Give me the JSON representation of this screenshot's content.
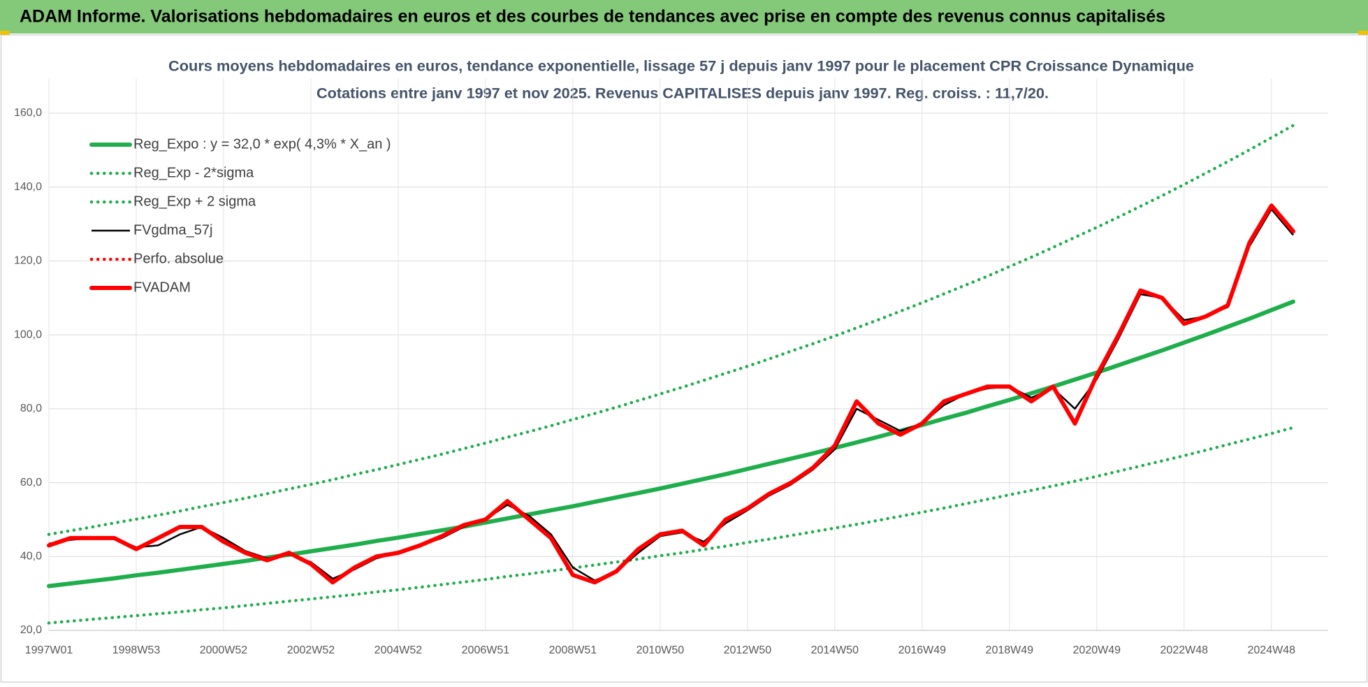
{
  "header": {
    "title": "ADAM Informe. Valorisations hebdomadaires en euros et des courbes de tendances avec prise en compte des revenus connus capitalisés"
  },
  "chart_data": {
    "type": "line",
    "title": "Cours moyens hebdomadaires en euros, tendance exponentielle, lissage 57 j depuis janv 1997 pour le placement CPR Croissance Dynamique",
    "subtitle": "Cotations entre janv 1997 et nov 2025. Revenus CAPITALISES depuis janv 1997. Reg. croiss. : 11,7/20.",
    "categories": [
      "1997W01",
      null,
      null,
      null,
      "1998W53",
      null,
      null,
      null,
      "2000W52",
      null,
      null,
      null,
      "2002W52",
      null,
      null,
      null,
      "2004W52",
      null,
      null,
      null,
      "2006W51",
      null,
      null,
      null,
      "2008W51",
      null,
      null,
      null,
      "2010W50",
      null,
      null,
      null,
      "2012W50",
      null,
      null,
      null,
      "2014W50",
      null,
      null,
      null,
      "2016W49",
      null,
      null,
      null,
      "2018W49",
      null,
      null,
      null,
      "2020W49",
      null,
      null,
      null,
      "2022W48",
      null,
      null,
      null,
      "2024W48",
      null
    ],
    "ylim": [
      20,
      160
    ],
    "yticks": [
      {
        "value": 20,
        "label": "20,0"
      },
      {
        "value": 40,
        "label": "40,0"
      },
      {
        "value": 60,
        "label": "60,0"
      },
      {
        "value": 80,
        "label": "80,0"
      },
      {
        "value": 100,
        "label": "100,0"
      },
      {
        "value": 120,
        "label": "120,0"
      },
      {
        "value": 140,
        "label": "140,0"
      },
      {
        "value": 160,
        "label": "160,0"
      }
    ],
    "grid": true,
    "legend": "upper left",
    "series": [
      {
        "name": "Reg_Expo : y = 32,0 * exp( 4,3% *  X_an )",
        "color": "#1fae4c",
        "style": "thick",
        "values": [
          32.0,
          32.7,
          33.4,
          34.1,
          34.9,
          35.6,
          36.4,
          37.2,
          38.0,
          38.8,
          39.7,
          40.5,
          41.4,
          42.3,
          43.2,
          44.2,
          45.1,
          46.1,
          47.1,
          48.1,
          49.2,
          50.3,
          51.4,
          52.5,
          53.6,
          54.8,
          56.0,
          57.2,
          58.4,
          59.7,
          61.0,
          62.3,
          63.7,
          65.1,
          66.5,
          67.9,
          69.4,
          70.9,
          72.4,
          74.0,
          75.6,
          77.3,
          78.9,
          80.7,
          82.4,
          84.2,
          86.0,
          87.9,
          89.8,
          91.8,
          93.8,
          95.8,
          97.9,
          100.0,
          102.2,
          104.4,
          106.7,
          109.0
        ]
      },
      {
        "name": "Reg_Exp - 2*sigma",
        "color": "#1fae4c",
        "style": "dotted",
        "values": [
          22.0,
          22.5,
          23.0,
          23.5,
          24.0,
          24.5,
          25.0,
          25.6,
          26.1,
          26.7,
          27.3,
          27.9,
          28.5,
          29.1,
          29.7,
          30.4,
          31.0,
          31.7,
          32.4,
          33.1,
          33.8,
          34.6,
          35.3,
          36.1,
          36.9,
          37.7,
          38.5,
          39.3,
          40.2,
          41.0,
          41.9,
          42.8,
          43.8,
          44.7,
          45.7,
          46.7,
          47.7,
          48.7,
          49.8,
          50.9,
          52.0,
          53.1,
          54.3,
          55.5,
          56.7,
          57.9,
          59.1,
          60.4,
          61.7,
          63.1,
          64.5,
          65.9,
          67.3,
          68.8,
          70.3,
          71.8,
          73.3,
          74.9
        ]
      },
      {
        "name": "Reg_Exp + 2 sigma",
        "color": "#1fae4c",
        "style": "dotted",
        "values": [
          46.0,
          47.0,
          48.0,
          49.1,
          50.1,
          51.2,
          52.3,
          53.5,
          54.6,
          55.8,
          57.0,
          58.3,
          59.5,
          60.8,
          62.2,
          63.5,
          64.9,
          66.3,
          67.7,
          69.2,
          70.7,
          72.3,
          73.8,
          75.4,
          77.1,
          78.7,
          80.4,
          82.2,
          84.0,
          85.8,
          87.7,
          89.6,
          91.5,
          93.5,
          95.6,
          97.6,
          99.7,
          101.9,
          104.1,
          106.4,
          108.7,
          111.1,
          113.5,
          115.9,
          118.5,
          121.0,
          123.7,
          126.4,
          129.1,
          131.9,
          134.8,
          137.7,
          140.7,
          143.8,
          146.9,
          150.1,
          153.4,
          156.7
        ]
      },
      {
        "name": "FVgdma_57j",
        "color": "#000000",
        "style": "thin",
        "values": [
          43.5,
          44.5,
          45,
          45,
          42.5,
          43,
          46,
          48,
          45,
          41.5,
          39.5,
          40.5,
          38.5,
          34,
          36.5,
          39.5,
          41,
          43,
          45,
          48,
          50,
          54,
          51,
          46,
          37,
          33.5,
          36,
          41,
          45.5,
          46.5,
          44,
          49,
          52.5,
          56.5,
          59.5,
          63.5,
          69,
          80,
          77,
          74,
          76,
          81,
          84,
          85.5,
          86,
          83,
          85.5,
          80,
          88,
          99,
          111,
          110,
          104,
          105,
          107.5,
          124,
          134,
          127
        ]
      },
      {
        "name": "Perfo. absolue",
        "color": "#ff0000",
        "style": "dotted",
        "values": [
          43,
          45,
          45,
          45,
          42,
          45,
          48,
          48,
          44,
          41,
          39,
          41,
          38,
          33,
          37,
          40,
          41,
          43,
          45.5,
          48.5,
          50,
          55,
          50,
          45,
          35,
          33,
          36,
          42,
          46,
          47,
          43,
          50,
          53,
          57,
          60,
          64,
          70,
          82,
          76,
          73,
          76,
          82,
          84,
          86,
          86,
          82,
          86,
          76,
          89,
          100,
          112,
          110,
          103,
          105,
          108,
          125,
          135,
          128
        ]
      },
      {
        "name": "FVADAM",
        "color": "#ff0000",
        "style": "thick",
        "values": [
          43,
          45,
          45,
          45,
          42,
          45,
          48,
          48,
          44,
          41,
          39,
          41,
          38,
          33,
          37,
          40,
          41,
          43,
          45.5,
          48.5,
          50,
          55,
          50,
          45,
          35,
          33,
          36,
          42,
          46,
          47,
          43,
          50,
          53,
          57,
          60,
          64,
          70,
          82,
          76,
          73,
          76,
          82,
          84,
          86,
          86,
          82,
          86,
          76,
          89,
          100,
          112,
          110,
          103,
          105,
          108,
          125,
          135,
          128
        ]
      }
    ]
  }
}
